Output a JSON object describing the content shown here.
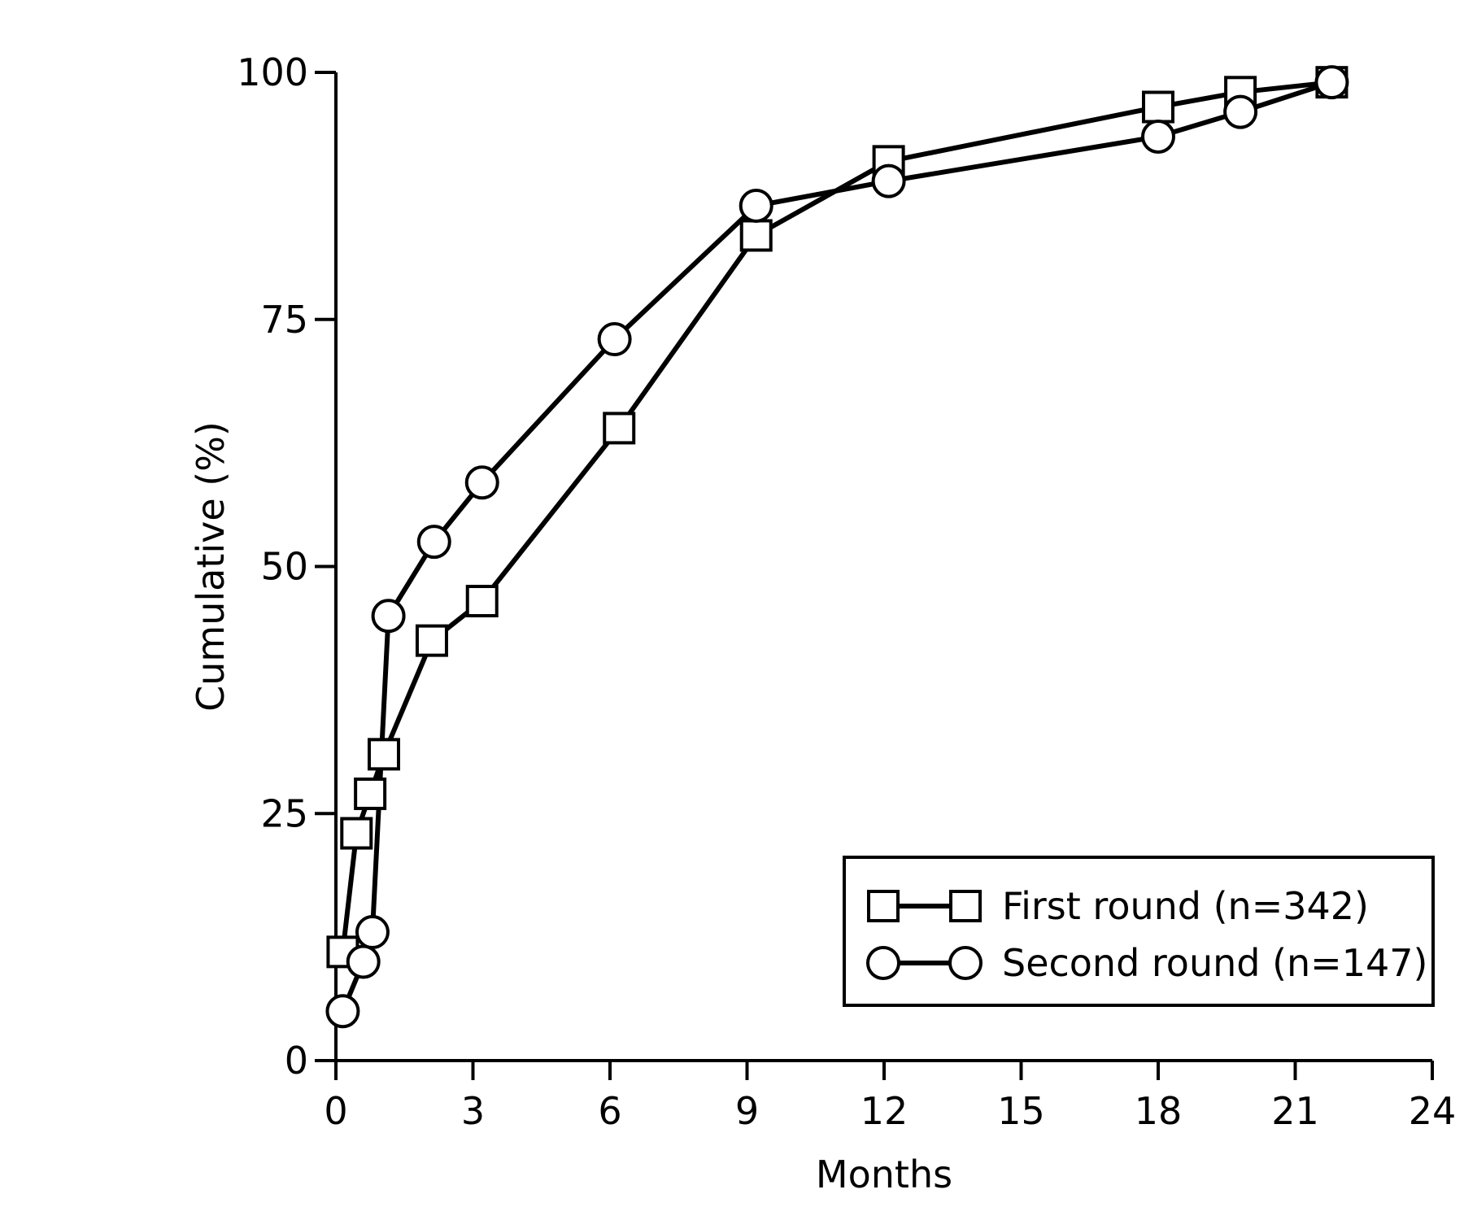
{
  "chart_data": {
    "type": "line",
    "xlabel": "Months",
    "ylabel": "Cumulative (%)",
    "xlim": [
      0,
      24
    ],
    "ylim": [
      0,
      100
    ],
    "xticks": [
      "0",
      "3",
      "6",
      "9",
      "12",
      "15",
      "18",
      "21",
      "24"
    ],
    "yticks": [
      "0",
      "25",
      "50",
      "75",
      "100"
    ],
    "grid": false,
    "legend_position": "bottom-right",
    "series": [
      {
        "name": "First round (n=342)",
        "marker": "square",
        "points": [
          {
            "x": 0.15,
            "y": 11
          },
          {
            "x": 0.45,
            "y": 23
          },
          {
            "x": 0.75,
            "y": 27
          },
          {
            "x": 1.05,
            "y": 31
          },
          {
            "x": 2.1,
            "y": 42.5
          },
          {
            "x": 3.2,
            "y": 46.5
          },
          {
            "x": 6.2,
            "y": 64
          },
          {
            "x": 9.2,
            "y": 83.5
          },
          {
            "x": 12.1,
            "y": 91
          },
          {
            "x": 18.0,
            "y": 96.5
          },
          {
            "x": 19.8,
            "y": 98
          },
          {
            "x": 21.8,
            "y": 99
          }
        ]
      },
      {
        "name": "Second round (n=147)",
        "marker": "circle",
        "points": [
          {
            "x": 0.15,
            "y": 5
          },
          {
            "x": 0.6,
            "y": 10
          },
          {
            "x": 0.8,
            "y": 13
          },
          {
            "x": 1.15,
            "y": 45
          },
          {
            "x": 2.15,
            "y": 52.5
          },
          {
            "x": 3.2,
            "y": 58.5
          },
          {
            "x": 6.1,
            "y": 73
          },
          {
            "x": 9.2,
            "y": 86.5
          },
          {
            "x": 12.1,
            "y": 89
          },
          {
            "x": 18.0,
            "y": 93.5
          },
          {
            "x": 19.8,
            "y": 96
          },
          {
            "x": 21.8,
            "y": 99
          }
        ]
      }
    ]
  }
}
